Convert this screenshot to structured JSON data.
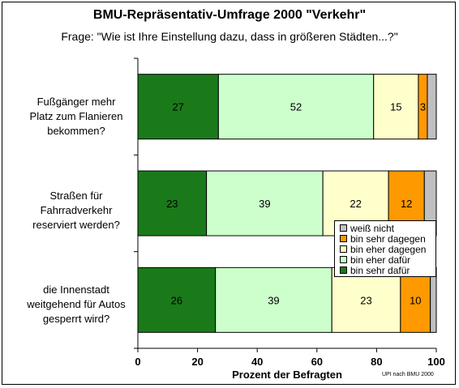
{
  "chart_data": {
    "type": "bar",
    "orientation": "horizontal",
    "stacked": true,
    "title": "BMU-Repräsentativ-Umfrage 2000 \"Verkehr\"",
    "subtitle": "Frage: \"Wie ist Ihre Einstellung dazu, dass in größeren Städten...?\"",
    "xlabel": "Prozent der Befragten",
    "ylabel": "",
    "xlim": [
      0,
      100
    ],
    "x_ticks": [
      "0",
      "20",
      "40",
      "60",
      "80",
      "100"
    ],
    "grid": false,
    "legend_position": "right",
    "categories": [
      [
        "Fußgänger mehr",
        "Platz zum Flanieren",
        "bekommen?"
      ],
      [
        "Straßen für",
        "Fahrradverkehr",
        "reserviert werden?"
      ],
      [
        "die Innenstadt",
        "weitgehend für Autos",
        "gesperrt wird?"
      ]
    ],
    "series": [
      {
        "name": "bin sehr dafür",
        "color": "#1a7a1a",
        "values": [
          27,
          23,
          26
        ],
        "labels": [
          "27",
          "23",
          "26"
        ]
      },
      {
        "name": "bin eher dafür",
        "color": "#ccffcc",
        "values": [
          52,
          39,
          39
        ],
        "labels": [
          "52",
          "39",
          "39"
        ]
      },
      {
        "name": "bin eher dagegen",
        "color": "#ffffcc",
        "values": [
          15,
          22,
          23
        ],
        "labels": [
          "15",
          "22",
          "23"
        ]
      },
      {
        "name": "bin sehr dagegen",
        "color": "#ff9900",
        "values": [
          3,
          12,
          10
        ],
        "labels": [
          "3",
          "12",
          "10"
        ]
      },
      {
        "name": "weiß nicht",
        "color": "#c0c0c0",
        "values": [
          3,
          4,
          2
        ],
        "labels": [
          "",
          "",
          ""
        ]
      }
    ],
    "legend_order": [
      "weiß nicht",
      "bin sehr dagegen",
      "bin eher dagegen",
      "bin eher dafür",
      "bin sehr dafür"
    ],
    "source_note": "UPI nach BMU 2000"
  }
}
